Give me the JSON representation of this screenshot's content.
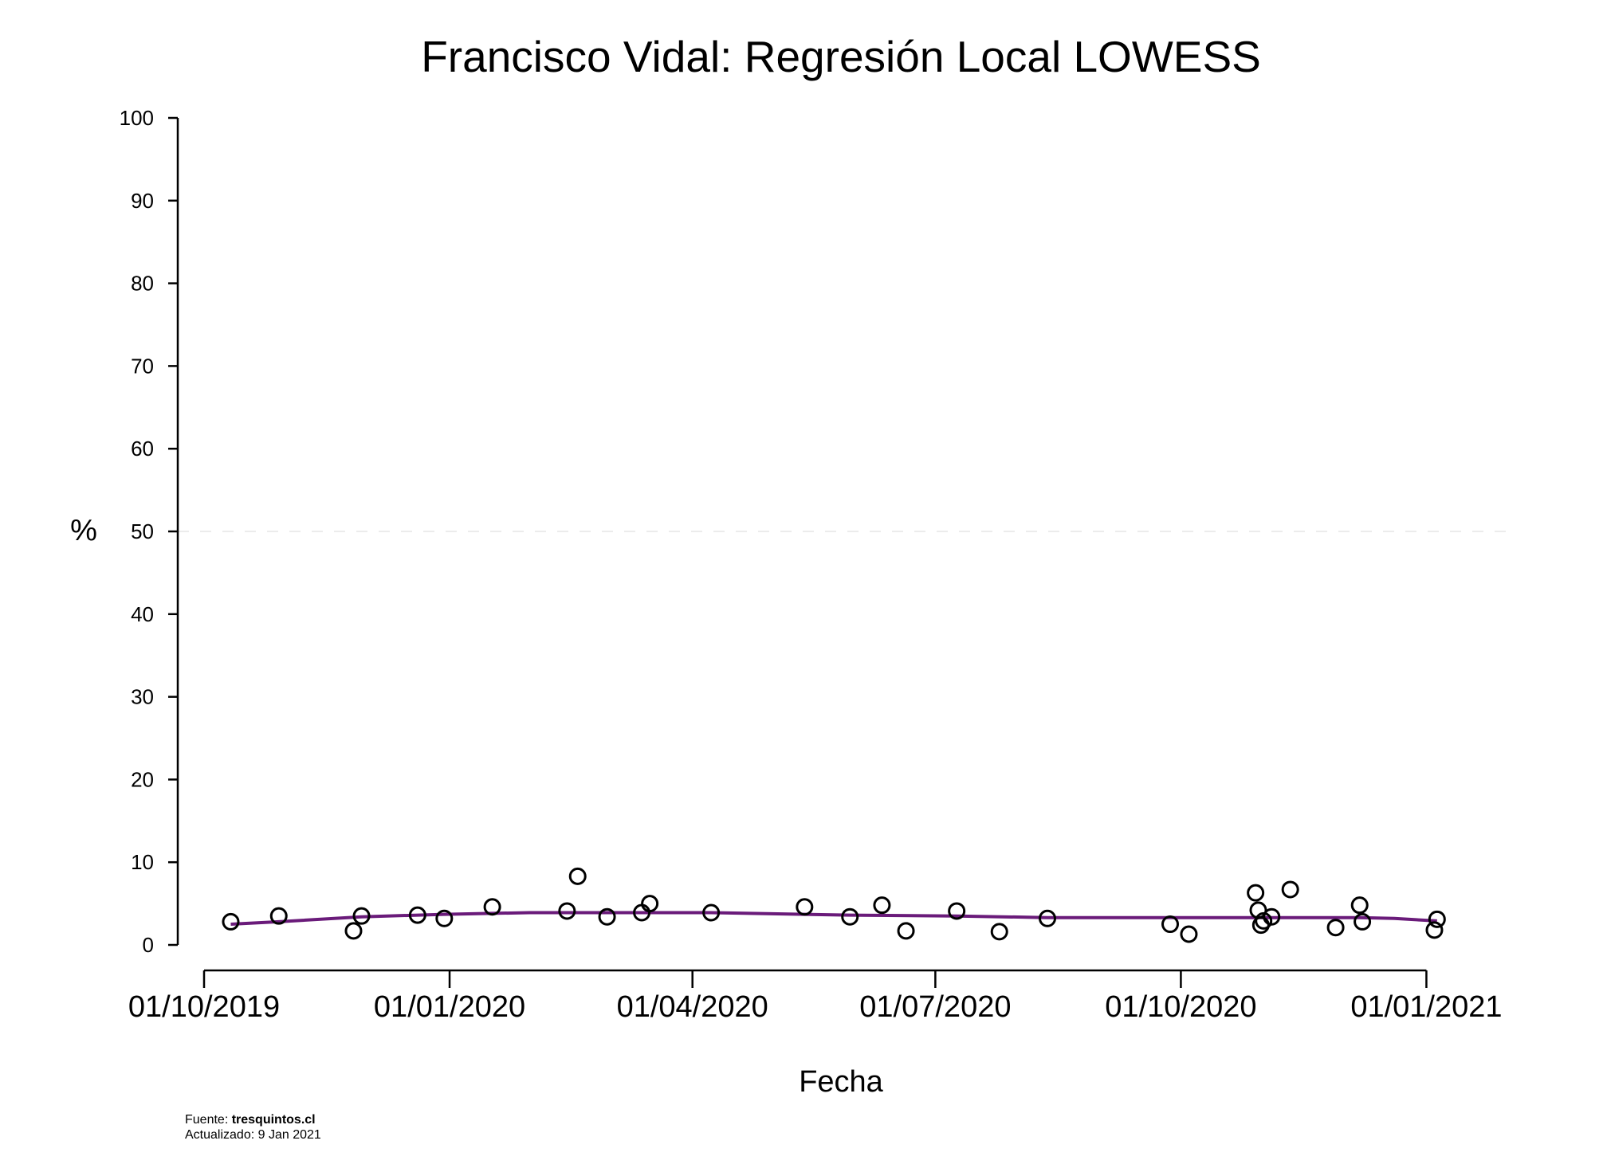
{
  "chart_data": {
    "type": "scatter",
    "title": "Francisco Vidal: Regresión Local LOWESS",
    "xlabel": "Fecha",
    "ylabel": "%",
    "ylim": [
      0,
      100
    ],
    "yticks": [
      "0",
      "10",
      "20",
      "30",
      "40",
      "50",
      "60",
      "70",
      "80",
      "90",
      "100"
    ],
    "reference_line": {
      "y": 50,
      "style": "dashed",
      "color": "#e6e6e6"
    },
    "xticks": [
      {
        "date": "2019-10-01",
        "label": "01/10/2019"
      },
      {
        "date": "2020-01-01",
        "label": "01/01/2020"
      },
      {
        "date": "2020-04-01",
        "label": "01/04/2020"
      },
      {
        "date": "2020-07-01",
        "label": "01/07/2020"
      },
      {
        "date": "2020-10-01",
        "label": "01/10/2020"
      },
      {
        "date": "2021-01-01",
        "label": "01/01/2021"
      }
    ],
    "xlim": [
      "2019-10-01",
      "2021-01-17"
    ],
    "points": [
      {
        "x": "2019-10-11",
        "y": 2.8
      },
      {
        "x": "2019-10-29",
        "y": 3.5
      },
      {
        "x": "2019-11-26",
        "y": 1.7
      },
      {
        "x": "2019-11-29",
        "y": 3.5
      },
      {
        "x": "2019-12-20",
        "y": 3.6
      },
      {
        "x": "2019-12-30",
        "y": 3.2
      },
      {
        "x": "2020-01-17",
        "y": 4.6
      },
      {
        "x": "2020-02-14",
        "y": 4.1
      },
      {
        "x": "2020-02-18",
        "y": 8.3
      },
      {
        "x": "2020-02-29",
        "y": 3.4
      },
      {
        "x": "2020-03-13",
        "y": 3.9
      },
      {
        "x": "2020-03-16",
        "y": 5.0
      },
      {
        "x": "2020-04-08",
        "y": 3.9
      },
      {
        "x": "2020-05-13",
        "y": 4.6
      },
      {
        "x": "2020-05-30",
        "y": 3.4
      },
      {
        "x": "2020-06-11",
        "y": 4.8
      },
      {
        "x": "2020-06-20",
        "y": 1.7
      },
      {
        "x": "2020-07-09",
        "y": 4.1
      },
      {
        "x": "2020-07-25",
        "y": 1.6
      },
      {
        "x": "2020-08-12",
        "y": 3.2
      },
      {
        "x": "2020-09-27",
        "y": 2.5
      },
      {
        "x": "2020-10-04",
        "y": 1.3
      },
      {
        "x": "2020-10-29",
        "y": 6.3
      },
      {
        "x": "2020-10-30",
        "y": 4.2
      },
      {
        "x": "2020-10-31",
        "y": 2.4
      },
      {
        "x": "2020-11-01",
        "y": 2.9
      },
      {
        "x": "2020-11-04",
        "y": 3.4
      },
      {
        "x": "2020-11-11",
        "y": 6.7
      },
      {
        "x": "2020-11-28",
        "y": 2.1
      },
      {
        "x": "2020-12-07",
        "y": 4.8
      },
      {
        "x": "2020-12-08",
        "y": 2.8
      },
      {
        "x": "2021-01-04",
        "y": 1.8
      },
      {
        "x": "2021-01-05",
        "y": 3.1
      }
    ],
    "lowess": {
      "color": "#6a1b7a",
      "points": [
        {
          "x": "2019-10-11",
          "y": 2.5
        },
        {
          "x": "2019-10-29",
          "y": 2.8
        },
        {
          "x": "2019-11-29",
          "y": 3.4
        },
        {
          "x": "2019-12-30",
          "y": 3.7
        },
        {
          "x": "2020-01-31",
          "y": 3.9
        },
        {
          "x": "2020-02-29",
          "y": 3.9
        },
        {
          "x": "2020-04-08",
          "y": 3.9
        },
        {
          "x": "2020-05-30",
          "y": 3.6
        },
        {
          "x": "2020-07-09",
          "y": 3.5
        },
        {
          "x": "2020-08-12",
          "y": 3.3
        },
        {
          "x": "2020-09-27",
          "y": 3.3
        },
        {
          "x": "2020-11-04",
          "y": 3.3
        },
        {
          "x": "2020-12-07",
          "y": 3.3
        },
        {
          "x": "2020-12-20",
          "y": 3.2
        },
        {
          "x": "2021-01-05",
          "y": 2.9
        }
      ]
    },
    "marker": {
      "shape": "open-circle",
      "color": "#000000"
    },
    "grid": false
  },
  "footer": {
    "source_label": "Fuente: ",
    "source_name": "tresquintos.cl",
    "updated": "Actualizado: 9 Jan 2021"
  }
}
